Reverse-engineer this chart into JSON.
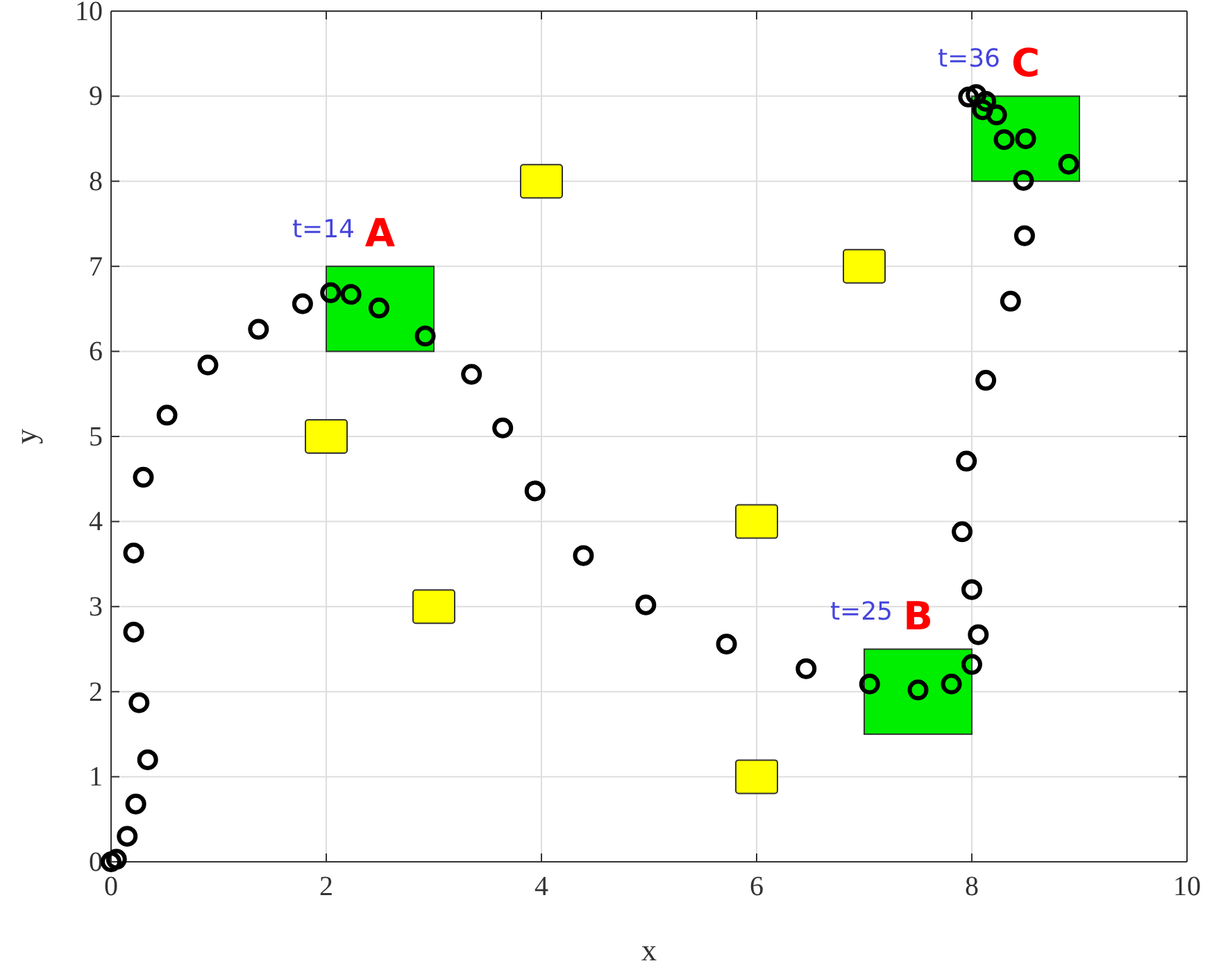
{
  "chart_data": {
    "type": "scatter",
    "xlabel": "x",
    "ylabel": "y",
    "xlim": [
      0,
      10
    ],
    "ylim": [
      0,
      10
    ],
    "xticks": [
      0,
      2,
      4,
      6,
      8,
      10
    ],
    "yticks": [
      0,
      1,
      2,
      3,
      4,
      5,
      6,
      7,
      8,
      9,
      10
    ],
    "grid": true,
    "series": [
      {
        "type": "bar",
        "color": "#00ee00",
        "x": [
          2.5,
          7.5,
          8.5
        ],
        "base": [
          6,
          1.5,
          8
        ],
        "values": [
          1,
          1,
          1
        ]
      },
      {
        "color": "#ffff00",
        "marker": "square",
        "x": [
          2,
          3,
          4,
          6,
          6,
          7
        ],
        "values": [
          5,
          3,
          8,
          4,
          1,
          7
        ]
      },
      {
        "color": "#000000",
        "marker": "circle",
        "x": [
          0,
          0.05,
          0.15,
          0.23,
          0.34,
          0.26,
          0.21,
          0.21,
          0.3,
          0.52,
          0.9,
          1.37,
          1.78,
          2.04,
          2.23,
          2.49,
          2.92,
          3.35,
          3.64,
          3.94,
          4.39,
          4.97,
          5.72,
          6.46,
          7.05,
          7.5,
          7.81,
          8.0,
          8.06,
          8.0,
          7.91,
          7.95,
          8.13,
          8.36,
          8.49,
          8.48,
          8.9,
          8.5,
          8.3,
          8.23,
          8.1,
          8.13,
          8.04,
          7.97
        ],
        "values": [
          0,
          0.03,
          0.3,
          0.68,
          1.2,
          1.87,
          2.7,
          3.63,
          4.52,
          5.25,
          5.84,
          6.26,
          6.56,
          6.69,
          6.67,
          6.51,
          6.18,
          5.73,
          5.1,
          4.36,
          3.6,
          3.02,
          2.56,
          2.27,
          2.09,
          2.02,
          2.09,
          2.32,
          2.67,
          3.2,
          3.88,
          4.71,
          5.66,
          6.59,
          7.36,
          8.01,
          8.2,
          8.5,
          8.49,
          8.78,
          8.84,
          8.94,
          9.02,
          8.99
        ]
      }
    ],
    "annotations": [
      {
        "text": "A",
        "x": 2.5,
        "y": 7
      },
      {
        "text": "B",
        "x": 7.5,
        "y": 2.5
      },
      {
        "text": "C",
        "x": 8.5,
        "y": 9
      },
      "t=14",
      "t=25",
      "t=36"
    ]
  }
}
